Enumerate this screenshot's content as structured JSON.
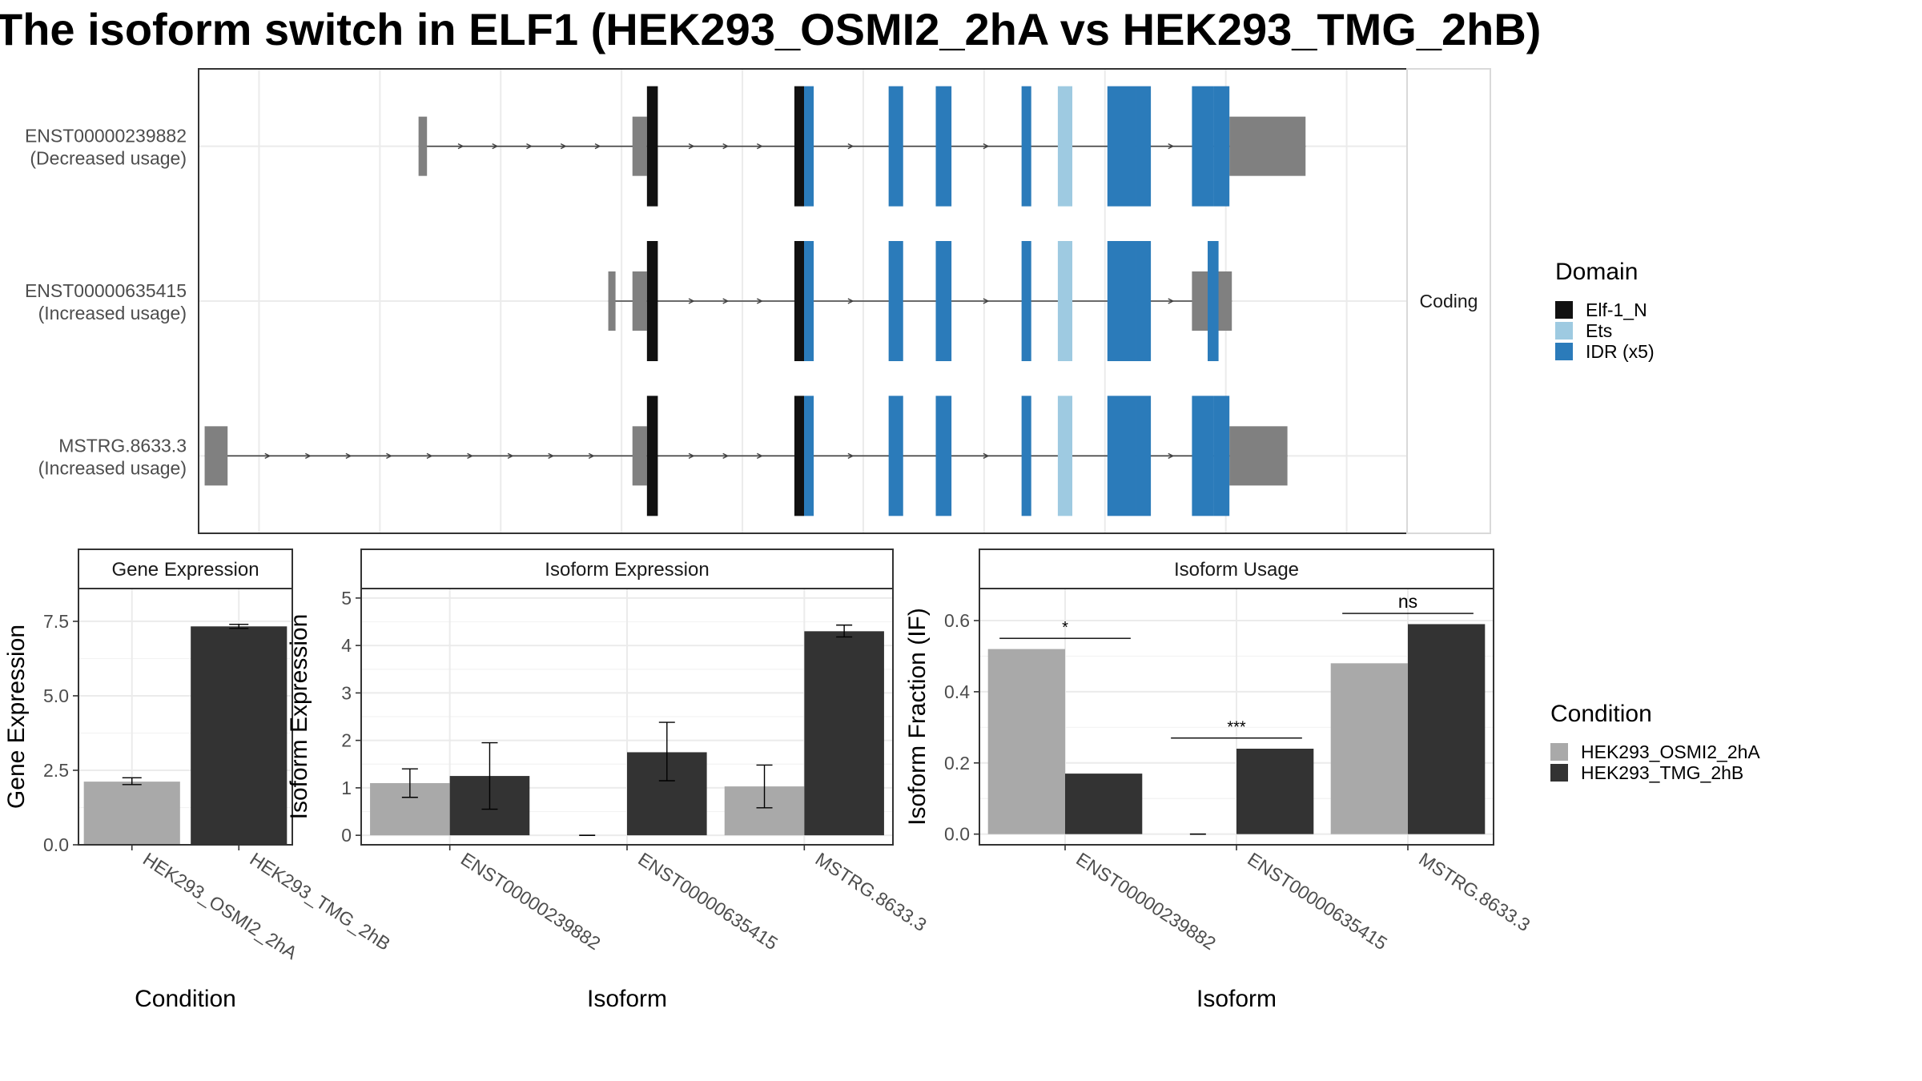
{
  "title": "The isoform switch in ELF1 (HEK293_OSMI2_2hA vs HEK293_TMG_2hB)",
  "colors": {
    "utr": "#808080",
    "intron": "#404040",
    "domain_elf1n": "#111111",
    "domain_ets": "#9ecae1",
    "domain_idr": "#2b7bba",
    "cond_a": "#a9a9a9",
    "cond_b": "#333333",
    "grid": "#ebebeb",
    "strip_fill": "#ffffff",
    "strip_border": "#333333"
  },
  "transcript_panel": {
    "strip_label": "Coding",
    "x_range": [
      0,
      100
    ],
    "transcripts": [
      {
        "id": "ENST00000239882",
        "usage_label": "(Decreased usage)",
        "span": [
          18.2,
          91.6
        ],
        "utr_blocks": [
          [
            18.2,
            18.9,
            "narrow"
          ],
          [
            35.9,
            37.1,
            "mid"
          ],
          [
            85.3,
            91.6,
            "wide"
          ]
        ],
        "coding_blocks": [
          [
            37.1,
            38.0,
            "domain_elf1n"
          ],
          [
            49.3,
            50.1,
            "domain_elf1n"
          ],
          [
            50.1,
            50.9,
            "domain_idr"
          ],
          [
            57.1,
            58.3,
            "domain_idr"
          ],
          [
            61.0,
            62.3,
            "domain_idr"
          ],
          [
            68.1,
            68.9,
            "domain_idr"
          ],
          [
            71.1,
            72.3,
            "domain_ets"
          ],
          [
            75.2,
            77.6,
            "domain_idr"
          ],
          [
            77.6,
            78.8,
            "domain_idr"
          ],
          [
            82.2,
            84.0,
            "domain_idr"
          ],
          [
            84.0,
            85.3,
            "domain_idr"
          ]
        ]
      },
      {
        "id": "ENST00000635415",
        "usage_label": "(Increased usage)",
        "span": [
          33.9,
          85.5
        ],
        "utr_blocks": [
          [
            33.9,
            34.5,
            "narrow"
          ],
          [
            35.9,
            37.1,
            "mid"
          ],
          [
            82.2,
            85.5,
            "mid"
          ]
        ],
        "coding_blocks": [
          [
            37.1,
            38.0,
            "domain_elf1n"
          ],
          [
            49.3,
            50.1,
            "domain_elf1n"
          ],
          [
            50.1,
            50.9,
            "domain_idr"
          ],
          [
            57.1,
            58.3,
            "domain_idr"
          ],
          [
            61.0,
            62.3,
            "domain_idr"
          ],
          [
            68.1,
            68.9,
            "domain_idr"
          ],
          [
            71.1,
            72.3,
            "domain_ets"
          ],
          [
            75.2,
            77.6,
            "domain_idr"
          ],
          [
            77.6,
            78.8,
            "domain_idr"
          ],
          [
            83.5,
            84.4,
            "domain_idr"
          ]
        ]
      },
      {
        "id": "MSTRG.8633.3",
        "usage_label": "(Increased usage)",
        "span": [
          0.5,
          90.1
        ],
        "utr_blocks": [
          [
            0.5,
            2.4,
            "mid"
          ],
          [
            35.9,
            37.1,
            "mid"
          ],
          [
            85.3,
            90.1,
            "mid"
          ]
        ],
        "coding_blocks": [
          [
            37.1,
            38.0,
            "domain_elf1n"
          ],
          [
            49.3,
            50.1,
            "domain_elf1n"
          ],
          [
            50.1,
            50.9,
            "domain_idr"
          ],
          [
            57.1,
            58.3,
            "domain_idr"
          ],
          [
            61.0,
            62.3,
            "domain_idr"
          ],
          [
            68.1,
            68.9,
            "domain_idr"
          ],
          [
            71.1,
            72.3,
            "domain_ets"
          ],
          [
            75.2,
            77.6,
            "domain_idr"
          ],
          [
            77.6,
            78.8,
            "domain_idr"
          ],
          [
            82.2,
            84.0,
            "domain_idr"
          ],
          [
            84.0,
            85.3,
            "domain_idr"
          ]
        ]
      }
    ]
  },
  "domain_legend": {
    "title": "Domain",
    "items": [
      {
        "label": "Elf-1_N",
        "color_key": "domain_elf1n"
      },
      {
        "label": "Ets",
        "color_key": "domain_ets"
      },
      {
        "label": "IDR (x5)",
        "color_key": "domain_idr"
      }
    ]
  },
  "condition_legend": {
    "title": "Condition",
    "items": [
      {
        "label": "HEK293_OSMI2_2hA",
        "color_key": "cond_a"
      },
      {
        "label": "HEK293_TMG_2hB",
        "color_key": "cond_b"
      }
    ]
  },
  "chart_data": [
    {
      "type": "bar",
      "id": "gene-expression",
      "strip": "Gene Expression",
      "title": "",
      "xlabel": "Condition",
      "ylabel": "Gene Expression",
      "ylim": [
        0,
        8.6
      ],
      "yticks": [
        0,
        2.5,
        5,
        7.5
      ],
      "ytick_labels": [
        "0.0",
        "2.5",
        "5.0",
        "7.5"
      ],
      "categories": [
        "HEK293_OSMI2_2hA",
        "HEK293_TMG_2hB"
      ],
      "bars": [
        {
          "category": "HEK293_OSMI2_2hA",
          "value": 2.12,
          "err": [
            2.02,
            2.25
          ],
          "color_key": "cond_a"
        },
        {
          "category": "HEK293_TMG_2hB",
          "value": 7.33,
          "err": [
            7.26,
            7.4
          ],
          "color_key": "cond_b"
        }
      ],
      "grid": true
    },
    {
      "type": "bar",
      "id": "isoform-expression",
      "strip": "Isoform Expression",
      "title": "",
      "xlabel": "Isoform",
      "ylabel": "Isoform Expression",
      "ylim": [
        -0.2,
        5.2
      ],
      "yticks": [
        0,
        1,
        2,
        3,
        4,
        5
      ],
      "ytick_labels": [
        "0",
        "1",
        "2",
        "3",
        "4",
        "5"
      ],
      "categories": [
        "ENST00000239882",
        "ENST00000635415",
        "MSTRG.8633.3"
      ],
      "series": [
        {
          "name": "HEK293_OSMI2_2hA",
          "color_key": "cond_a",
          "values": [
            1.1,
            0.0,
            1.03
          ],
          "err": [
            [
              0.8,
              1.4
            ],
            [
              0.0,
              0.0
            ],
            [
              0.58,
              1.48
            ]
          ]
        },
        {
          "name": "HEK293_TMG_2hB",
          "color_key": "cond_b",
          "values": [
            1.25,
            1.75,
            4.3
          ],
          "err": [
            [
              0.55,
              1.95
            ],
            [
              1.15,
              2.38
            ],
            [
              4.18,
              4.43
            ]
          ]
        }
      ],
      "grid": true
    },
    {
      "type": "bar",
      "id": "isoform-usage",
      "strip": "Isoform Usage",
      "title": "",
      "xlabel": "Isoform",
      "ylabel": "Isoform Fraction (IF)",
      "ylim": [
        -0.03,
        0.69
      ],
      "yticks": [
        0,
        0.2,
        0.4,
        0.6
      ],
      "ytick_labels": [
        "0.0",
        "0.2",
        "0.4",
        "0.6"
      ],
      "categories": [
        "ENST00000239882",
        "ENST00000635415",
        "MSTRG.8633.3"
      ],
      "series": [
        {
          "name": "HEK293_OSMI2_2hA",
          "color_key": "cond_a",
          "values": [
            0.52,
            0.0,
            0.48
          ]
        },
        {
          "name": "HEK293_TMG_2hB",
          "color_key": "cond_b",
          "values": [
            0.17,
            0.24,
            0.59
          ]
        }
      ],
      "significance": [
        {
          "category": "ENST00000239882",
          "label": "*",
          "y": 0.55
        },
        {
          "category": "ENST00000635415",
          "label": "***",
          "y": 0.27
        },
        {
          "category": "MSTRG.8633.3",
          "label": "ns",
          "y": 0.62
        }
      ],
      "grid": true
    }
  ]
}
